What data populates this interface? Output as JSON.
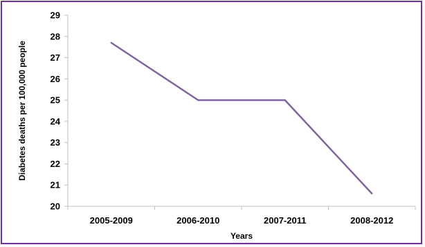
{
  "chart_data": {
    "type": "line",
    "title": "",
    "xlabel": "Years",
    "ylabel": "Diabetes deaths per 100,000 people",
    "categories": [
      "2005-2009",
      "2006-2010",
      "2007-2011",
      "2008-2012"
    ],
    "series": [
      {
        "values": [
          27.7,
          25.0,
          25.0,
          20.6
        ],
        "color": "#8064a2"
      }
    ],
    "ylim": [
      20,
      29
    ],
    "yticks": [
      "20",
      "21",
      "22",
      "23",
      "24",
      "25",
      "26",
      "27",
      "28",
      "29"
    ],
    "grid": false,
    "legend": "none"
  },
  "colors": {
    "frame": "#7030a0",
    "axis": "#bfbfbf",
    "line": "#8064a2"
  }
}
